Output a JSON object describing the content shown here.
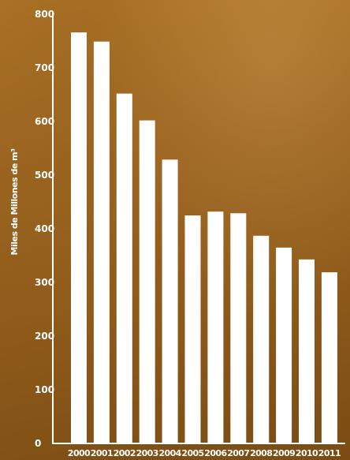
{
  "chart_data": {
    "type": "bar",
    "title": "",
    "xlabel": "",
    "ylabel": "Miles de Millones de m³",
    "categories": [
      "2000",
      "2001",
      "2002",
      "2003",
      "2004",
      "2005",
      "2006",
      "2007",
      "2008",
      "2009",
      "2010",
      "2011"
    ],
    "values": [
      766,
      749,
      652,
      602,
      529,
      425,
      432,
      429,
      387,
      365,
      343,
      319
    ],
    "ylim": [
      0,
      800
    ],
    "yticks": [
      "0",
      "100",
      "200",
      "300",
      "400",
      "500",
      "600",
      "700",
      "800"
    ],
    "grid": false,
    "legend": "none",
    "colors": {
      "bar": "#ffffff",
      "axis": "#ffffff",
      "text": "#ffffff"
    }
  }
}
